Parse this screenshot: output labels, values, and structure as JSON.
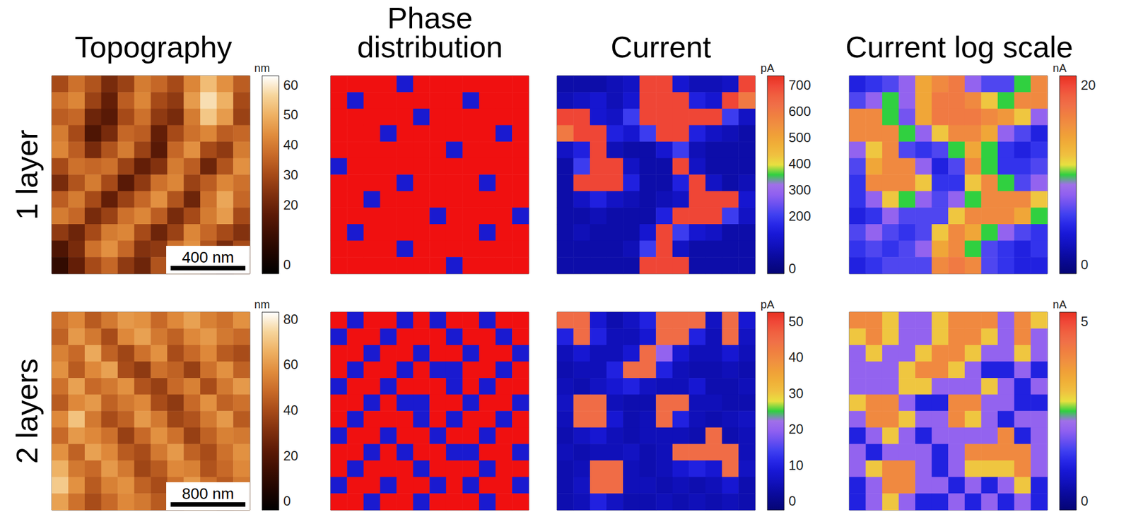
{
  "columns": [
    "Topography",
    "Phase distribution",
    "Current",
    "Current log scale"
  ],
  "rows": [
    "1 layer",
    "2 layers"
  ],
  "chart_data": [
    {
      "type": "heatmap",
      "row": "1 layer",
      "column": "Topography",
      "scale_bar": "400 nm",
      "colorbar": {
        "unit": "nm",
        "range": [
          -3,
          63
        ],
        "ticks": [
          0,
          20,
          30,
          40,
          50,
          60
        ]
      },
      "cells": [
        [
          30,
          38,
          32,
          22,
          28,
          40,
          36,
          30,
          42,
          52,
          44,
          34
        ],
        [
          38,
          42,
          28,
          18,
          34,
          42,
          30,
          26,
          46,
          58,
          50,
          30
        ],
        [
          34,
          36,
          20,
          16,
          30,
          38,
          26,
          22,
          40,
          54,
          46,
          28
        ],
        [
          40,
          30,
          14,
          22,
          36,
          34,
          18,
          30,
          38,
          42,
          34,
          36
        ],
        [
          42,
          34,
          22,
          32,
          40,
          28,
          16,
          36,
          44,
          30,
          26,
          40
        ],
        [
          30,
          38,
          36,
          38,
          28,
          18,
          24,
          40,
          34,
          20,
          32,
          44
        ],
        [
          22,
          32,
          40,
          30,
          16,
          26,
          38,
          42,
          28,
          34,
          42,
          38
        ],
        [
          34,
          40,
          30,
          18,
          28,
          36,
          44,
          32,
          20,
          38,
          48,
          36
        ],
        [
          40,
          36,
          22,
          28,
          38,
          42,
          34,
          22,
          30,
          40,
          46,
          30
        ],
        [
          26,
          20,
          30,
          40,
          42,
          30,
          20,
          28,
          42,
          36,
          30,
          24
        ],
        [
          14,
          22,
          38,
          44,
          36,
          24,
          26,
          38,
          44,
          32,
          22,
          30
        ],
        [
          8,
          18,
          30,
          36,
          26,
          20,
          32,
          40,
          38,
          26,
          20,
          28
        ]
      ]
    },
    {
      "type": "heatmap",
      "row": "1 layer",
      "column": "Phase distribution",
      "cells": [
        [
          1,
          1,
          1,
          1,
          0,
          1,
          1,
          1,
          1,
          1,
          1,
          1
        ],
        [
          1,
          0,
          1,
          1,
          1,
          1,
          1,
          1,
          0,
          1,
          1,
          1
        ],
        [
          1,
          1,
          1,
          1,
          1,
          0,
          1,
          1,
          1,
          1,
          1,
          1
        ],
        [
          1,
          1,
          1,
          0,
          1,
          1,
          1,
          1,
          1,
          1,
          0,
          1
        ],
        [
          1,
          1,
          1,
          1,
          1,
          1,
          1,
          0,
          1,
          1,
          1,
          1
        ],
        [
          0,
          1,
          1,
          1,
          1,
          1,
          1,
          1,
          1,
          1,
          1,
          1
        ],
        [
          1,
          1,
          1,
          1,
          0,
          1,
          1,
          1,
          1,
          0,
          1,
          1
        ],
        [
          1,
          1,
          0,
          1,
          1,
          1,
          1,
          1,
          1,
          1,
          1,
          1
        ],
        [
          1,
          1,
          1,
          1,
          1,
          1,
          0,
          1,
          1,
          1,
          1,
          0
        ],
        [
          1,
          0,
          1,
          1,
          1,
          1,
          1,
          1,
          1,
          0,
          1,
          1
        ],
        [
          1,
          1,
          1,
          1,
          0,
          1,
          1,
          1,
          1,
          1,
          1,
          1
        ],
        [
          1,
          1,
          1,
          1,
          1,
          1,
          1,
          0,
          1,
          1,
          1,
          1
        ]
      ]
    },
    {
      "type": "heatmap",
      "row": "1 layer",
      "column": "Current",
      "colorbar": {
        "unit": "pA",
        "range": [
          -20,
          735
        ],
        "ticks": [
          0,
          200,
          300,
          400,
          500,
          600,
          700
        ]
      },
      "cells": [
        [
          60,
          60,
          60,
          80,
          100,
          700,
          700,
          120,
          80,
          80,
          100,
          700
        ],
        [
          80,
          100,
          120,
          80,
          120,
          700,
          700,
          700,
          150,
          120,
          700,
          600
        ],
        [
          700,
          700,
          120,
          100,
          200,
          700,
          700,
          700,
          700,
          700,
          200,
          100
        ],
        [
          600,
          700,
          700,
          150,
          120,
          200,
          700,
          700,
          150,
          100,
          80,
          60
        ],
        [
          100,
          150,
          700,
          80,
          60,
          60,
          120,
          200,
          80,
          60,
          60,
          60
        ],
        [
          60,
          200,
          700,
          700,
          100,
          60,
          60,
          700,
          100,
          60,
          60,
          60
        ],
        [
          60,
          700,
          700,
          700,
          150,
          60,
          60,
          150,
          700,
          100,
          60,
          80
        ],
        [
          60,
          100,
          150,
          100,
          80,
          60,
          80,
          100,
          700,
          700,
          700,
          120
        ],
        [
          60,
          60,
          80,
          60,
          60,
          60,
          150,
          700,
          700,
          700,
          200,
          100
        ],
        [
          60,
          80,
          60,
          60,
          60,
          120,
          700,
          200,
          120,
          100,
          60,
          60
        ],
        [
          60,
          60,
          60,
          60,
          80,
          200,
          700,
          100,
          60,
          60,
          60,
          60
        ],
        [
          60,
          60,
          60,
          60,
          60,
          700,
          700,
          700,
          60,
          60,
          60,
          60
        ]
      ]
    },
    {
      "type": "heatmap",
      "row": "1 layer",
      "column": "Current log scale",
      "colorbar": {
        "unit": "nA",
        "range": [
          -1,
          21
        ],
        "ticks": [
          0,
          20
        ]
      },
      "cells": [
        [
          4,
          5,
          6,
          8,
          14,
          16,
          17,
          8,
          6,
          6,
          10,
          16
        ],
        [
          6,
          8,
          10,
          8,
          14,
          17,
          17,
          16,
          12,
          10,
          16,
          16
        ],
        [
          16,
          16,
          10,
          7,
          14,
          17,
          17,
          17,
          16,
          15,
          12,
          8
        ],
        [
          16,
          16,
          16,
          10,
          8,
          12,
          16,
          16,
          14,
          8,
          6,
          4
        ],
        [
          8,
          12,
          16,
          6,
          5,
          6,
          10,
          14,
          10,
          5,
          4,
          5
        ],
        [
          6,
          14,
          16,
          16,
          8,
          4,
          6,
          16,
          10,
          5,
          5,
          6
        ],
        [
          5,
          16,
          16,
          16,
          12,
          5,
          5,
          12,
          16,
          10,
          6,
          8
        ],
        [
          5,
          8,
          12,
          10,
          8,
          6,
          8,
          10,
          16,
          16,
          16,
          12
        ],
        [
          4,
          5,
          8,
          6,
          6,
          6,
          12,
          16,
          16,
          16,
          14,
          10
        ],
        [
          6,
          8,
          6,
          5,
          6,
          12,
          16,
          14,
          10,
          8,
          6,
          5
        ],
        [
          5,
          6,
          5,
          6,
          8,
          14,
          16,
          10,
          6,
          5,
          4,
          5
        ],
        [
          4,
          5,
          6,
          6,
          6,
          16,
          17,
          16,
          6,
          5,
          4,
          4
        ]
      ]
    },
    {
      "type": "heatmap",
      "row": "2 layers",
      "column": "Topography",
      "scale_bar": "800 nm",
      "colorbar": {
        "unit": "nm",
        "range": [
          -4,
          83
        ],
        "ticks": [
          0,
          20,
          40,
          60,
          80
        ]
      },
      "cells": [
        [
          50,
          56,
          44,
          52,
          60,
          58,
          48,
          56,
          62,
          54,
          50,
          58
        ],
        [
          46,
          60,
          52,
          40,
          56,
          62,
          52,
          46,
          56,
          60,
          52,
          48
        ],
        [
          54,
          48,
          64,
          46,
          38,
          50,
          58,
          40,
          48,
          56,
          44,
          40
        ],
        [
          58,
          44,
          56,
          62,
          40,
          34,
          50,
          46,
          36,
          50,
          58,
          46
        ],
        [
          50,
          62,
          48,
          52,
          58,
          42,
          36,
          48,
          54,
          40,
          52,
          60
        ],
        [
          44,
          56,
          60,
          46,
          52,
          56,
          40,
          34,
          48,
          58,
          46,
          50
        ],
        [
          56,
          70,
          52,
          40,
          46,
          60,
          52,
          38,
          42,
          52,
          60,
          44
        ],
        [
          48,
          60,
          56,
          50,
          36,
          48,
          58,
          50,
          36,
          46,
          54,
          52
        ],
        [
          58,
          46,
          62,
          56,
          44,
          40,
          52,
          60,
          46,
          40,
          50,
          58
        ],
        [
          66,
          52,
          48,
          60,
          52,
          38,
          44,
          56,
          54,
          42,
          48,
          56
        ],
        [
          72,
          58,
          44,
          54,
          58,
          46,
          40,
          50,
          60,
          50,
          44,
          52
        ],
        [
          62,
          50,
          40,
          48,
          56,
          52,
          44,
          46,
          56,
          54,
          46,
          50
        ]
      ]
    },
    {
      "type": "heatmap",
      "row": "2 layers",
      "column": "Phase distribution",
      "cells": [
        [
          1,
          0,
          1,
          1,
          0,
          1,
          0,
          1,
          1,
          0,
          1,
          1
        ],
        [
          0,
          1,
          1,
          0,
          1,
          1,
          1,
          0,
          1,
          1,
          0,
          1
        ],
        [
          1,
          1,
          0,
          1,
          1,
          0,
          1,
          1,
          0,
          1,
          1,
          0
        ],
        [
          1,
          0,
          1,
          1,
          0,
          1,
          0,
          0,
          1,
          1,
          0,
          1
        ],
        [
          0,
          1,
          1,
          0,
          1,
          1,
          1,
          0,
          1,
          0,
          1,
          1
        ],
        [
          1,
          1,
          0,
          1,
          0,
          0,
          1,
          1,
          0,
          1,
          1,
          0
        ],
        [
          1,
          0,
          1,
          1,
          1,
          0,
          1,
          0,
          1,
          1,
          0,
          1
        ],
        [
          0,
          1,
          1,
          0,
          1,
          1,
          0,
          1,
          1,
          0,
          1,
          1
        ],
        [
          1,
          1,
          0,
          1,
          0,
          1,
          1,
          0,
          0,
          1,
          1,
          0
        ],
        [
          1,
          0,
          1,
          1,
          1,
          0,
          1,
          1,
          1,
          0,
          1,
          1
        ],
        [
          0,
          1,
          1,
          0,
          1,
          1,
          0,
          1,
          0,
          1,
          1,
          0
        ],
        [
          1,
          1,
          0,
          1,
          1,
          0,
          1,
          1,
          1,
          0,
          1,
          1
        ]
      ]
    },
    {
      "type": "heatmap",
      "row": "2 layers",
      "column": "Current",
      "colorbar": {
        "unit": "pA",
        "range": [
          -2.5,
          52.5
        ],
        "ticks": [
          0,
          10,
          20,
          30,
          40,
          50
        ]
      },
      "cells": [
        [
          45,
          45,
          8,
          4,
          6,
          10,
          45,
          45,
          45,
          6,
          45,
          8
        ],
        [
          10,
          45,
          10,
          5,
          5,
          8,
          45,
          45,
          10,
          5,
          45,
          6
        ],
        [
          5,
          8,
          5,
          5,
          8,
          45,
          20,
          8,
          5,
          5,
          8,
          5
        ],
        [
          4,
          5,
          5,
          10,
          45,
          45,
          10,
          5,
          4,
          4,
          5,
          4
        ],
        [
          5,
          4,
          6,
          8,
          10,
          6,
          5,
          5,
          8,
          4,
          4,
          5
        ],
        [
          6,
          45,
          45,
          5,
          4,
          4,
          45,
          45,
          5,
          5,
          4,
          4
        ],
        [
          5,
          45,
          45,
          8,
          4,
          5,
          45,
          10,
          5,
          4,
          5,
          6
        ],
        [
          4,
          6,
          8,
          5,
          4,
          5,
          5,
          5,
          4,
          45,
          4,
          5
        ],
        [
          5,
          4,
          5,
          5,
          6,
          4,
          5,
          45,
          45,
          45,
          45,
          5
        ],
        [
          4,
          5,
          45,
          45,
          5,
          4,
          5,
          8,
          10,
          8,
          45,
          6
        ],
        [
          4,
          6,
          45,
          45,
          5,
          5,
          4,
          5,
          4,
          5,
          8,
          4
        ],
        [
          4,
          5,
          10,
          6,
          4,
          4,
          5,
          4,
          5,
          4,
          5,
          4
        ]
      ]
    },
    {
      "type": "heatmap",
      "row": "2 layers",
      "column": "Current log scale",
      "colorbar": {
        "unit": "nA",
        "range": [
          -0.25,
          5.25
        ],
        "ticks": [
          0,
          5
        ]
      },
      "cells": [
        [
          4,
          4,
          3,
          2,
          2,
          3,
          4,
          4,
          4,
          2,
          4,
          3
        ],
        [
          3,
          4,
          3,
          2,
          2,
          3,
          4,
          4,
          3,
          2,
          4,
          2
        ],
        [
          2,
          3,
          2,
          2,
          3,
          4,
          4,
          3,
          2,
          2,
          3,
          2
        ],
        [
          2,
          2,
          2,
          3,
          4,
          4,
          3,
          2,
          1,
          1,
          2,
          1
        ],
        [
          2,
          2,
          2,
          3,
          3,
          2,
          2,
          2,
          3,
          2,
          1,
          2
        ],
        [
          3,
          4,
          4,
          2,
          1,
          1,
          4,
          4,
          2,
          2,
          1,
          1
        ],
        [
          2,
          4,
          4,
          3,
          2,
          2,
          4,
          3,
          2,
          1,
          2,
          2
        ],
        [
          1,
          2,
          3,
          2,
          1,
          2,
          2,
          2,
          2,
          4,
          1,
          2
        ],
        [
          2,
          1,
          2,
          2,
          2,
          1,
          2,
          4,
          4,
          4,
          4,
          2
        ],
        [
          2,
          3,
          4,
          4,
          2,
          1,
          2,
          3,
          3,
          3,
          4,
          2
        ],
        [
          1,
          2,
          4,
          4,
          2,
          2,
          1,
          2,
          1,
          2,
          3,
          1
        ],
        [
          1,
          2,
          3,
          2,
          1,
          1,
          2,
          1,
          2,
          1,
          2,
          1
        ]
      ]
    }
  ]
}
